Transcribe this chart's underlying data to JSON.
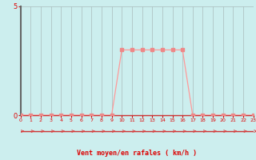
{
  "x": [
    0,
    1,
    2,
    3,
    4,
    5,
    6,
    7,
    8,
    9,
    10,
    11,
    12,
    13,
    14,
    15,
    16,
    17,
    18,
    19,
    20,
    21,
    22,
    23
  ],
  "y": [
    0,
    0,
    0,
    0,
    0,
    0,
    0,
    0,
    0,
    0,
    3,
    3,
    3,
    3,
    3,
    3,
    3,
    0,
    0,
    0,
    0,
    0,
    0,
    0
  ],
  "line_color": "#FF9999",
  "marker_color": "#EE8888",
  "bg_color": "#CCEEEE",
  "grid_color": "#AABBBB",
  "axis_label_color": "#DD0000",
  "tick_color": "#DD0000",
  "xlabel_text": "Vent moyen/en rafales ( km/h )",
  "ylim": [
    0,
    5
  ],
  "xlim": [
    0,
    23
  ],
  "yticks": [
    0,
    5
  ],
  "xtick_labels": [
    "0",
    "1",
    "2",
    "3",
    "4",
    "5",
    "6",
    "7",
    "8",
    "9",
    "10",
    "11",
    "12",
    "13",
    "14",
    "15",
    "16",
    "17",
    "18",
    "19",
    "20",
    "21",
    "22",
    "23"
  ],
  "arrow_color": "#DD4444",
  "spine_left_color": "#666666",
  "red_line_color": "#CC3333"
}
